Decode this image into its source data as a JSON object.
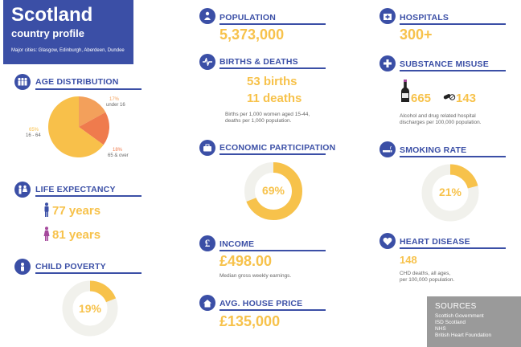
{
  "header": {
    "title": "Scotland",
    "subtitle": "country profile",
    "cities": "Major cities: Glasgow, Edinburgh, Aberdeen, Dundee"
  },
  "age_distribution": {
    "title": "AGE DISTRIBUTION",
    "slices": [
      {
        "percent": "17%",
        "label": "under 16",
        "value": 17,
        "color": "#f3a05b"
      },
      {
        "percent": "18%",
        "label": "65 & over",
        "value": 18,
        "color": "#ef7b4d"
      },
      {
        "percent": "65%",
        "label": "16 - 64",
        "value": 65,
        "color": "#f8c04a"
      }
    ]
  },
  "life_expectancy": {
    "title": "LIFE EXPECTANCY",
    "male": "77 years",
    "female": "81 years",
    "male_color": "#3b4fa6",
    "female_color": "#a5489c"
  },
  "child_poverty": {
    "title": "CHILD POVERTY",
    "value": "19%",
    "fraction": 0.19
  },
  "population": {
    "title": "POPULATION",
    "value": "5,373,000"
  },
  "births_deaths": {
    "title": "BIRTHS & DEATHS",
    "births": "53 births",
    "deaths": "11 deaths",
    "note_line1": "Births per 1,000 women aged 15-44,",
    "note_line2": "deaths per 1,000 population."
  },
  "economic": {
    "title": "ECONOMIC PARTICIPATION",
    "value": "69%",
    "fraction": 0.69
  },
  "income": {
    "title": "INCOME",
    "value": "£498.00",
    "note": "Median gross weekly earnings."
  },
  "house_price": {
    "title": "AVG. HOUSE PRICE",
    "value": "£135,000"
  },
  "hospitals": {
    "title": "HOSPITALS",
    "value": "300+"
  },
  "substance": {
    "title": "SUBSTANCE MISUSE",
    "alcohol": "665",
    "drug": "143",
    "note_line1": "Alcohol and drug related hospital",
    "note_line2": "discharges per 100,000 population."
  },
  "smoking": {
    "title": "SMOKING RATE",
    "value": "21%",
    "fraction": 0.21
  },
  "heart": {
    "title": "HEART DISEASE",
    "value": "148",
    "note_line1": "CHD deaths, all ages,",
    "note_line2": "per 100,000 population."
  },
  "sources": {
    "title": "SOURCES",
    "items": [
      "Scottish Government",
      "ISD Scotland",
      "NHS",
      "British Heart Foundation"
    ]
  },
  "colors": {
    "accent": "#3b4fa6",
    "yellow": "#f7c24b",
    "ring_bg": "#f1f1ec"
  }
}
